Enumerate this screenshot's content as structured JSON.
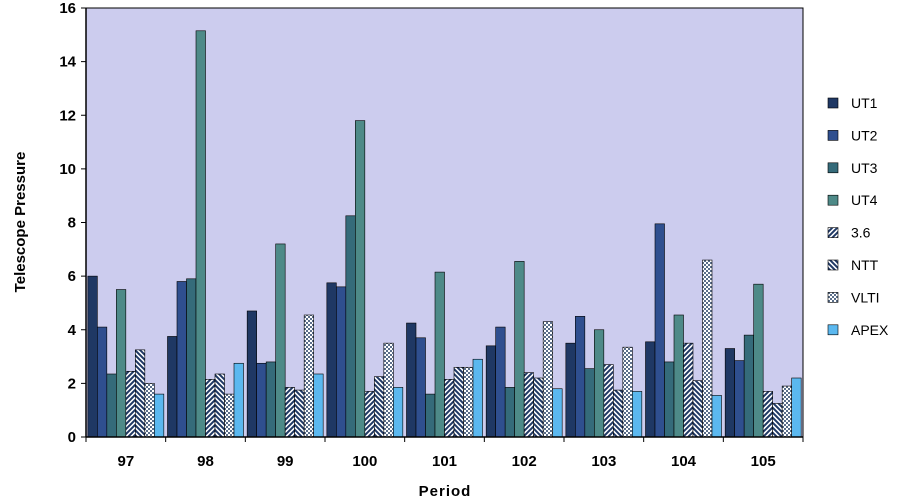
{
  "chart_data": {
    "type": "bar",
    "title": "",
    "xlabel": "Period",
    "ylabel": "Telescope Pressure",
    "ylim": [
      0,
      16
    ],
    "yticks": [
      0,
      2,
      4,
      6,
      8,
      10,
      12,
      14,
      16
    ],
    "categories": [
      "97",
      "98",
      "99",
      "100",
      "101",
      "102",
      "103",
      "104",
      "105"
    ],
    "legend_position": "right",
    "series": [
      {
        "name": "UT1",
        "color": "#1f3864",
        "pattern": "solid",
        "values": [
          6.0,
          3.75,
          4.7,
          5.75,
          4.25,
          3.4,
          3.5,
          3.55,
          3.3
        ]
      },
      {
        "name": "UT2",
        "color": "#2f4f8f",
        "pattern": "solid",
        "values": [
          4.1,
          5.8,
          2.75,
          5.6,
          3.7,
          4.1,
          4.5,
          7.95,
          2.85
        ]
      },
      {
        "name": "UT3",
        "color": "#356b7a",
        "pattern": "solid",
        "values": [
          2.35,
          5.9,
          2.8,
          8.25,
          1.6,
          1.85,
          2.55,
          2.8,
          3.8
        ]
      },
      {
        "name": "UT4",
        "color": "#4e8a88",
        "pattern": "solid",
        "values": [
          5.5,
          15.15,
          7.2,
          11.8,
          6.15,
          6.55,
          4.0,
          4.55,
          5.7
        ]
      },
      {
        "name": "3.6",
        "color": "#1f3864",
        "pattern": "diag-up",
        "values": [
          2.45,
          2.15,
          1.85,
          1.7,
          2.15,
          2.4,
          2.7,
          3.5,
          1.7
        ]
      },
      {
        "name": "NTT",
        "color": "#1f3864",
        "pattern": "diag-down",
        "values": [
          3.25,
          2.35,
          1.75,
          2.25,
          2.6,
          2.2,
          1.75,
          2.1,
          1.25
        ]
      },
      {
        "name": "VLTI",
        "color": "#5a6e8a",
        "pattern": "checker",
        "values": [
          2.0,
          1.6,
          4.55,
          3.5,
          2.6,
          4.3,
          3.35,
          6.6,
          1.9
        ]
      },
      {
        "name": "APEX",
        "color": "#5bb8ef",
        "pattern": "solid",
        "values": [
          1.6,
          2.75,
          2.35,
          1.85,
          2.9,
          1.8,
          1.7,
          1.55,
          2.2
        ]
      }
    ]
  }
}
